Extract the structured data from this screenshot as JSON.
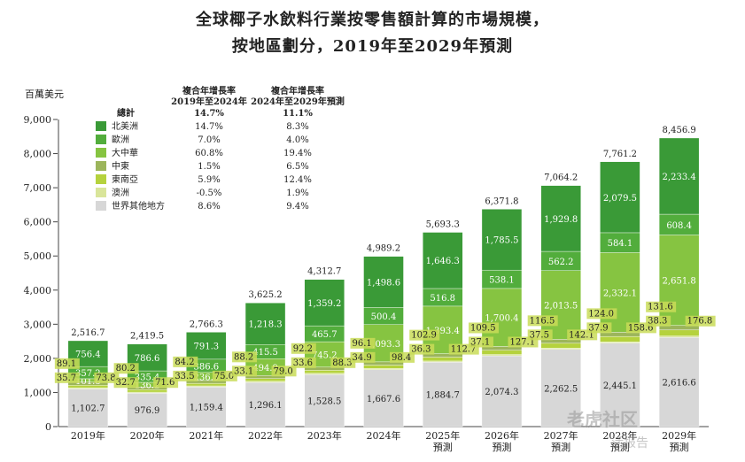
{
  "title_line1": "全球椰子水飲料行業按零售額計算的市場規模，",
  "title_line2": "按地區劃分，2019年至2029年預測",
  "unit_label": "百萬美元",
  "cagr_header_1": "複合年增長率\n2019年至2024年",
  "cagr_header_2": "複合年增長率\n2024年至2029年預測",
  "watermark": "老虎社区",
  "watermark2": "活报告",
  "colors": {
    "north_america": "#3a9a37",
    "europe": "#52ad3c",
    "greater_china": "#86c441",
    "middle_east": "#9cb55b",
    "southeast_asia": "#b5d23d",
    "australia": "#d9e59a",
    "rest_of_world": "#d7d7d7"
  },
  "chart_data": {
    "type": "bar",
    "stacked": true,
    "categories": [
      "2019年",
      "2020年",
      "2021年",
      "2022年",
      "2023年",
      "2024年",
      "2025年\n預測",
      "2026年\n預測",
      "2027年\n預測",
      "2028年\n預測",
      "2029年\n預測"
    ],
    "ylim": [
      0,
      9000
    ],
    "yticks": [
      "0",
      "1,000",
      "2,000",
      "3,000",
      "4,000",
      "5,000",
      "6,000",
      "7,000",
      "8,000",
      "9,000"
    ],
    "totals": [
      "2,516.7",
      "2,419.5",
      "2,766.3",
      "3,625.2",
      "4,312.7",
      "4,989.2",
      "5,693.3",
      "6,371.8",
      "7,064.2",
      "7,761.2",
      "8,456.9"
    ],
    "series": [
      {
        "name": "世界其他地方",
        "key": "rest_of_world",
        "values": [
          1102.7,
          976.9,
          1159.4,
          1296.1,
          1528.5,
          1667.6,
          1884.7,
          2074.3,
          2262.5,
          2445.1,
          2616.6
        ],
        "labels": [
          "1,102.7",
          "976.9",
          "1,159.4",
          "1,296.1",
          "1,528.5",
          "1,667.6",
          "1,884.7",
          "2,074.3",
          "2,262.5",
          "2,445.1",
          "2,616.6"
        ]
      },
      {
        "name": "澳洲",
        "key": "australia",
        "values": [
          35.7,
          32.7,
          33.5,
          33.1,
          33.6,
          34.9,
          36.3,
          37.1,
          37.5,
          37.9,
          38.3
        ],
        "labels": [
          "35.7",
          "32.7",
          "33.5",
          "33.1",
          "33.6",
          "34.9",
          "36.3",
          "37.1",
          "37.5",
          "37.9",
          "38.3"
        ]
      },
      {
        "name": "東南亞",
        "key": "southeast_asia",
        "values": [
          73.8,
          71.6,
          75.0,
          79.0,
          88.3,
          98.4,
          112.7,
          127.1,
          142.1,
          158.6,
          176.8
        ],
        "labels": [
          "73.8",
          "71.6",
          "75.0",
          "79.0",
          "88.3",
          "98.4",
          "112.7",
          "127.1",
          "142.1",
          "158.6",
          "176.8"
        ]
      },
      {
        "name": "中東",
        "key": "middle_east",
        "values": [
          89.1,
          80.2,
          84.2,
          88.2,
          92.2,
          96.1,
          102.9,
          109.5,
          116.5,
          124.0,
          131.6
        ],
        "labels": [
          "89.1",
          "80.2",
          "84.2",
          "88.2",
          "92.2",
          "96.1",
          "102.9",
          "109.5",
          "116.5",
          "124.0",
          "131.6"
        ]
      },
      {
        "name": "大中華",
        "key": "greater_china",
        "values": [
          101.8,
          136.2,
          236.3,
          494.9,
          745.2,
          1093.3,
          1393.4,
          1700.4,
          2013.5,
          2332.1,
          2651.8
        ],
        "labels": [
          "101.8",
          "136.2",
          "236.3",
          "494.9",
          "745.2",
          "1,093.3",
          "1,393.4",
          "1,700.4",
          "2,013.5",
          "2,332.1",
          "2,651.8"
        ]
      },
      {
        "name": "歐洲",
        "key": "europe",
        "values": [
          357.2,
          335.4,
          386.6,
          415.5,
          465.7,
          500.4,
          516.8,
          538.1,
          562.2,
          584.1,
          608.4
        ],
        "labels": [
          "357.2",
          "335.4",
          "386.6",
          "415.5",
          "465.7",
          "500.4",
          "516.8",
          "538.1",
          "562.2",
          "584.1",
          "608.4"
        ]
      },
      {
        "name": "北美洲",
        "key": "north_america",
        "values": [
          756.4,
          786.6,
          791.3,
          1218.3,
          1359.2,
          1498.6,
          1646.3,
          1785.5,
          1929.8,
          2079.5,
          2233.4
        ],
        "labels": [
          "756.4",
          "786.6",
          "791.3",
          "1,218.3",
          "1,359.2",
          "1,498.6",
          "1,646.3",
          "1,785.5",
          "1,929.8",
          "2,079.5",
          "2,233.4"
        ]
      }
    ],
    "legend_position": "top-left",
    "legend": [
      {
        "name": "總計",
        "key": "",
        "cagr1": "14.7%",
        "cagr2": "11.1%",
        "bold": true
      },
      {
        "name": "北美洲",
        "key": "north_america",
        "cagr1": "14.7%",
        "cagr2": "8.3%"
      },
      {
        "name": "歐洲",
        "key": "europe",
        "cagr1": "7.0%",
        "cagr2": "4.0%"
      },
      {
        "name": "大中華",
        "key": "greater_china",
        "cagr1": "60.8%",
        "cagr2": "19.4%"
      },
      {
        "name": "中東",
        "key": "middle_east",
        "cagr1": "1.5%",
        "cagr2": "6.5%"
      },
      {
        "name": "東南亞",
        "key": "southeast_asia",
        "cagr1": "5.9%",
        "cagr2": "12.4%"
      },
      {
        "name": "澳洲",
        "key": "australia",
        "cagr1": "-0.5%",
        "cagr2": "1.9%"
      },
      {
        "name": "世界其他地方",
        "key": "rest_of_world",
        "cagr1": "8.6%",
        "cagr2": "9.4%"
      }
    ]
  }
}
